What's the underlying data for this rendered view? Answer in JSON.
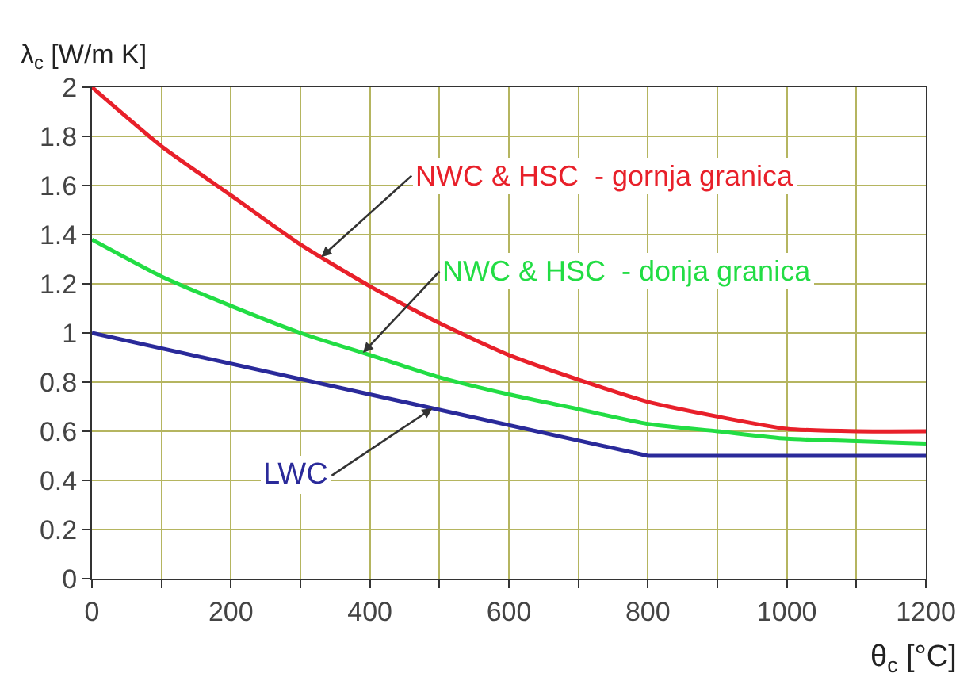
{
  "chart_data": {
    "type": "line",
    "xlabel": "θ$_{c}$ [°C]",
    "ylabel": "λ$_{c}$ [W/m K]",
    "x": [
      0,
      100,
      200,
      300,
      400,
      500,
      600,
      700,
      800,
      900,
      1000,
      1100,
      1200
    ],
    "series": [
      {
        "name": "NWC & HSC  - gornja granica",
        "color": "#e8202a",
        "values": [
          2.0,
          1.76,
          1.56,
          1.36,
          1.19,
          1.04,
          0.91,
          0.81,
          0.72,
          0.66,
          0.61,
          0.6,
          0.6
        ]
      },
      {
        "name": "NWC & HSC  - donja granica",
        "color": "#22dd44",
        "values": [
          1.38,
          1.23,
          1.11,
          1.0,
          0.91,
          0.82,
          0.75,
          0.69,
          0.63,
          0.6,
          0.57,
          0.56,
          0.55
        ]
      },
      {
        "name": "LWC",
        "color": "#2a2a9a",
        "x": [
          0,
          800,
          1200
        ],
        "values": [
          1.0,
          0.5,
          0.5
        ]
      }
    ],
    "xlim": [
      0,
      1200
    ],
    "ylim": [
      0,
      2
    ],
    "xticks": [
      0,
      {
        "value": 100,
        "label": null
      },
      200,
      {
        "value": 300,
        "label": null
      },
      400,
      {
        "value": 500,
        "label": null
      },
      600,
      {
        "value": 700,
        "label": null
      },
      800,
      {
        "value": 900,
        "label": null
      },
      1000,
      {
        "value": 1100,
        "label": null
      },
      1200
    ],
    "yticks": [
      0,
      0.2,
      0.4,
      0.6,
      0.8,
      1,
      1.2,
      1.4,
      1.6,
      1.8,
      2
    ],
    "grid": true,
    "legend": false,
    "marker": "none",
    "line_style": "solid"
  }
}
